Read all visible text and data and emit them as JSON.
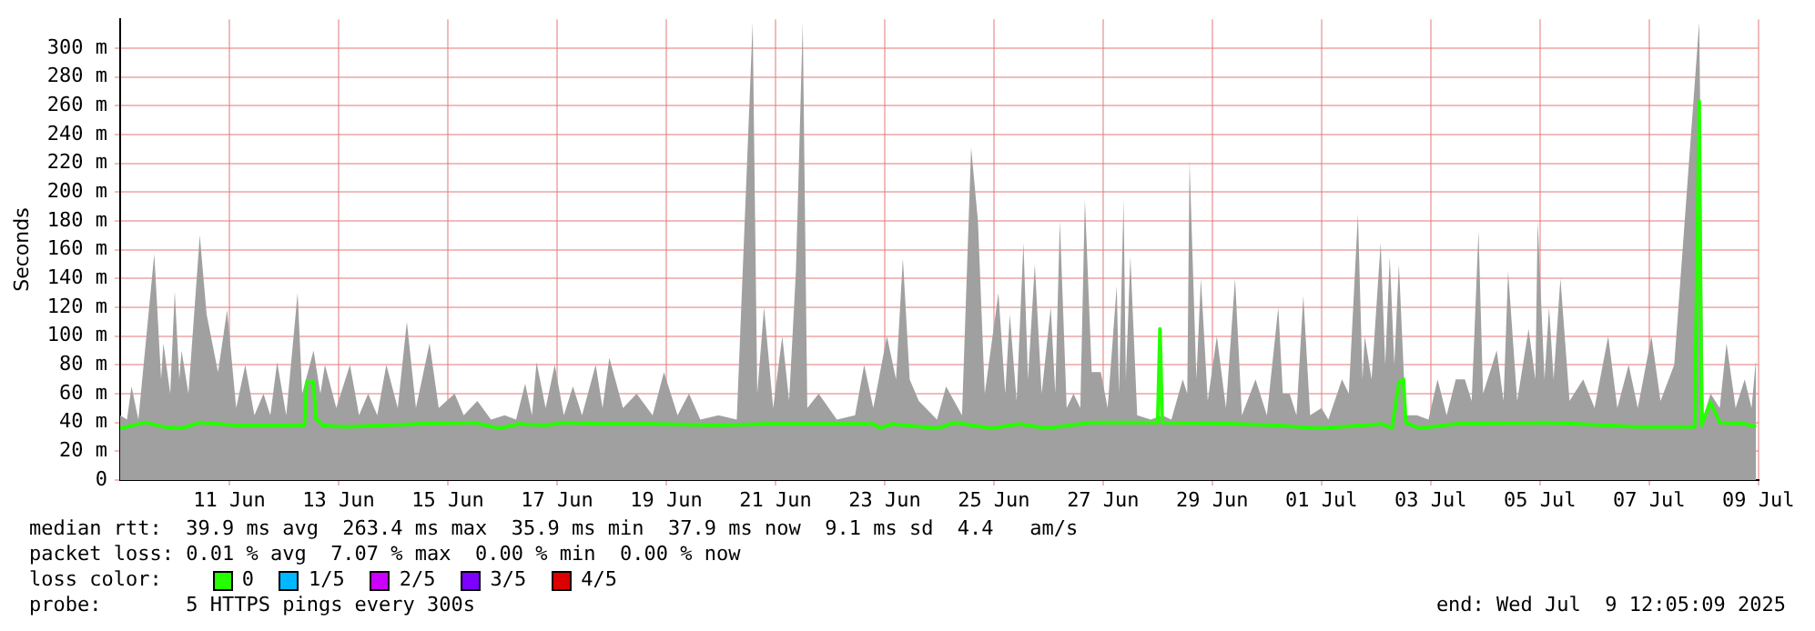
{
  "chart_data": {
    "type": "line",
    "ylabel": "Seconds",
    "legend_title": "loss color:",
    "legend": "bottom",
    "grid": true,
    "marker": "none",
    "line_style": "solid",
    "xlim": [
      "2025-06-09T12:00",
      "2025-07-09T12:05"
    ],
    "xticks": [
      {
        "value": "2025-06-11T12:00",
        "label": "11 Jun"
      },
      {
        "value": "2025-06-13T12:00",
        "label": "13 Jun"
      },
      {
        "value": "2025-06-15T12:00",
        "label": "15 Jun"
      },
      {
        "value": "2025-06-17T12:00",
        "label": "17 Jun"
      },
      {
        "value": "2025-06-19T12:00",
        "label": "19 Jun"
      },
      {
        "value": "2025-06-21T12:00",
        "label": "21 Jun"
      },
      {
        "value": "2025-06-23T12:00",
        "label": "23 Jun"
      },
      {
        "value": "2025-06-25T12:00",
        "label": "25 Jun"
      },
      {
        "value": "2025-06-27T12:00",
        "label": "27 Jun"
      },
      {
        "value": "2025-06-29T12:00",
        "label": "29 Jun"
      },
      {
        "value": "2025-07-01T12:00",
        "label": "01 Jul"
      },
      {
        "value": "2025-07-03T12:00",
        "label": "03 Jul"
      },
      {
        "value": "2025-07-05T12:00",
        "label": "05 Jul"
      },
      {
        "value": "2025-07-07T12:00",
        "label": "07 Jul"
      },
      {
        "value": "2025-07-09T12:00",
        "label": "09 Jul"
      }
    ],
    "ylim": [
      0,
      320
    ],
    "yticks": [
      0,
      {
        "value": 20,
        "label": "20 m"
      },
      {
        "value": 40,
        "label": "40 m"
      },
      {
        "value": 60,
        "label": "60 m"
      },
      {
        "value": 80,
        "label": "80 m"
      },
      {
        "value": 100,
        "label": "100 m"
      },
      {
        "value": 120,
        "label": "120 m"
      },
      {
        "value": 140,
        "label": "140 m"
      },
      {
        "value": 160,
        "label": "160 m"
      },
      {
        "value": 180,
        "label": "180 m"
      },
      {
        "value": 200,
        "label": "200 m"
      },
      {
        "value": 220,
        "label": "220 m"
      },
      {
        "value": 240,
        "label": "240 m"
      },
      {
        "value": 260,
        "label": "260 m"
      },
      {
        "value": 280,
        "label": "280 m"
      },
      {
        "value": 300,
        "label": "300 m"
      }
    ],
    "annotations": [
      "median rtt:  39.9 ms avg  263.4 ms max  35.9 ms min  37.9 ms now  9.1 ms sd  4.4   am/s",
      "packet loss: 0.01 % avg  7.07 % max  0.00 % min  0.00 % now",
      "probe:       5 HTTPS pings every 300s",
      "end: Wed Jul  9 12:05:09 2025"
    ],
    "series": [
      {
        "type": "area",
        "color": "#a0a0a0",
        "x": [
          "2025-06-09T12:00",
          "2025-06-09T15:00",
          "2025-06-09T17:00",
          "2025-06-09T20:00",
          "2025-06-10T03:00",
          "2025-06-10T06:00",
          "2025-06-10T07:00",
          "2025-06-10T10:00",
          "2025-06-10T12:00",
          "2025-06-10T14:00",
          "2025-06-10T15:00",
          "2025-06-10T18:00",
          "2025-06-10T23:00",
          "2025-06-11T02:00",
          "2025-06-11T07:00",
          "2025-06-11T11:00",
          "2025-06-11T15:00",
          "2025-06-11T19:00",
          "2025-06-11T23:00",
          "2025-06-12T03:00",
          "2025-06-12T06:00",
          "2025-06-12T09:00",
          "2025-06-12T13:00",
          "2025-06-12T18:00",
          "2025-06-12T20:00",
          "2025-06-13T01:00",
          "2025-06-13T04:00",
          "2025-06-13T06:00",
          "2025-06-13T11:00",
          "2025-06-13T17:00",
          "2025-06-13T21:00",
          "2025-06-14T01:00",
          "2025-06-14T05:00",
          "2025-06-14T09:00",
          "2025-06-14T14:00",
          "2025-06-14T18:00",
          "2025-06-14T22:00",
          "2025-06-15T04:00",
          "2025-06-15T08:00",
          "2025-06-15T15:00",
          "2025-06-15T19:00",
          "2025-06-16T01:00",
          "2025-06-16T07:00",
          "2025-06-16T13:00",
          "2025-06-16T18:00",
          "2025-06-16T22:00",
          "2025-06-17T01:00",
          "2025-06-17T03:00",
          "2025-06-17T07:00",
          "2025-06-17T11:00",
          "2025-06-17T15:00",
          "2025-06-17T19:00",
          "2025-06-17T23:00",
          "2025-06-18T05:00",
          "2025-06-18T08:00",
          "2025-06-18T11:00",
          "2025-06-18T17:00",
          "2025-06-18T23:00",
          "2025-06-19T06:00",
          "2025-06-19T11:00",
          "2025-06-19T17:00",
          "2025-06-19T22:00",
          "2025-06-20T03:00",
          "2025-06-20T11:00",
          "2025-06-20T19:00",
          "2025-06-21T02:00",
          "2025-06-21T04:00",
          "2025-06-21T07:00",
          "2025-06-21T11:00",
          "2025-06-21T15:00",
          "2025-06-21T18:00",
          "2025-06-21T21:00",
          "2025-06-22T00:00",
          "2025-06-22T02:00",
          "2025-06-22T07:00",
          "2025-06-22T15:00",
          "2025-06-22T23:00",
          "2025-06-23T03:00",
          "2025-06-23T07:00",
          "2025-06-23T13:00",
          "2025-06-23T17:00",
          "2025-06-23T20:00",
          "2025-06-23T23:00",
          "2025-06-24T03:00",
          "2025-06-24T11:00",
          "2025-06-24T15:00",
          "2025-06-24T22:00",
          "2025-06-25T02:00",
          "2025-06-25T05:00",
          "2025-06-25T08:00",
          "2025-06-25T14:00",
          "2025-06-25T17:00",
          "2025-06-25T19:00",
          "2025-06-25T22:00",
          "2025-06-26T01:00",
          "2025-06-26T03:00",
          "2025-06-26T06:00",
          "2025-06-26T09:00",
          "2025-06-26T13:00",
          "2025-06-26T15:00",
          "2025-06-26T17:00",
          "2025-06-26T20:00",
          "2025-06-26T23:00",
          "2025-06-27T02:00",
          "2025-06-27T04:00",
          "2025-06-27T07:00",
          "2025-06-27T11:00",
          "2025-06-27T14:00",
          "2025-06-27T18:00",
          "2025-06-27T19:00",
          "2025-06-27T21:00",
          "2025-06-27T22:00",
          "2025-06-28T00:00",
          "2025-06-28T03:00",
          "2025-06-28T09:00",
          "2025-06-28T14:00",
          "2025-06-28T18:00",
          "2025-06-28T23:00",
          "2025-06-29T01:00",
          "2025-06-29T02:00",
          "2025-06-29T05:00",
          "2025-06-29T07:00",
          "2025-06-29T10:00",
          "2025-06-29T14:00",
          "2025-06-29T18:00",
          "2025-06-29T22:00",
          "2025-06-30T01:00",
          "2025-06-30T07:00",
          "2025-06-30T12:00",
          "2025-06-30T17:00",
          "2025-06-30T19:00",
          "2025-06-30T22:00",
          "2025-07-01T01:00",
          "2025-07-01T04:00",
          "2025-07-01T07:00",
          "2025-07-01T12:00",
          "2025-07-01T15:00",
          "2025-07-01T21:00",
          "2025-07-02T00:00",
          "2025-07-02T04:00",
          "2025-07-02T06:00",
          "2025-07-02T07:00",
          "2025-07-02T10:00",
          "2025-07-02T14:00",
          "2025-07-02T16:00",
          "2025-07-02T18:00",
          "2025-07-02T20:00",
          "2025-07-02T22:00",
          "2025-07-03T01:00",
          "2025-07-03T06:00",
          "2025-07-03T11:00",
          "2025-07-03T15:00",
          "2025-07-03T19:00",
          "2025-07-03T23:00",
          "2025-07-04T03:00",
          "2025-07-04T06:00",
          "2025-07-04T09:00",
          "2025-07-04T11:00",
          "2025-07-04T17:00",
          "2025-07-04T20:00",
          "2025-07-04T22:00",
          "2025-07-05T02:00",
          "2025-07-05T07:00",
          "2025-07-05T10:00",
          "2025-07-05T11:00",
          "2025-07-05T14:00",
          "2025-07-05T16:00",
          "2025-07-05T18:00",
          "2025-07-05T21:00",
          "2025-07-06T01:00",
          "2025-07-06T07:00",
          "2025-07-06T12:00",
          "2025-07-06T18:00",
          "2025-07-06T22:00",
          "2025-07-07T03:00",
          "2025-07-07T07:00",
          "2025-07-07T13:00",
          "2025-07-07T17:00",
          "2025-07-07T23:00",
          "2025-07-08T10:00",
          "2025-07-08T12:00",
          "2025-07-08T15:00",
          "2025-07-08T19:00",
          "2025-07-08T22:00",
          "2025-07-09T02:00",
          "2025-07-09T06:00",
          "2025-07-09T09:00",
          "2025-07-09T11:00"
        ],
        "values": [
          45,
          42,
          65,
          42,
          157,
          70,
          95,
          60,
          131,
          70,
          90,
          60,
          170,
          115,
          75,
          118,
          50,
          80,
          45,
          60,
          45,
          82,
          45,
          130,
          60,
          90,
          60,
          80,
          50,
          80,
          45,
          60,
          45,
          80,
          50,
          110,
          50,
          95,
          50,
          60,
          45,
          55,
          42,
          45,
          42,
          67,
          45,
          82,
          50,
          80,
          45,
          65,
          45,
          80,
          50,
          85,
          50,
          60,
          45,
          75,
          45,
          60,
          42,
          45,
          42,
          318,
          60,
          120,
          50,
          100,
          55,
          145,
          318,
          50,
          60,
          42,
          45,
          80,
          50,
          100,
          70,
          154,
          70,
          55,
          42,
          65,
          45,
          231,
          180,
          60,
          130,
          60,
          115,
          55,
          165,
          70,
          150,
          60,
          120,
          60,
          180,
          50,
          60,
          50,
          195,
          75,
          75,
          50,
          135,
          60,
          195,
          70,
          155,
          45,
          42,
          45,
          42,
          70,
          60,
          222,
          70,
          140,
          55,
          100,
          50,
          140,
          45,
          70,
          45,
          120,
          60,
          60,
          45,
          128,
          45,
          50,
          42,
          70,
          60,
          185,
          70,
          100,
          70,
          165,
          80,
          155,
          80,
          150,
          45,
          45,
          42,
          70,
          45,
          70,
          70,
          55,
          173,
          60,
          90,
          55,
          145,
          55,
          105,
          70,
          180,
          70,
          120,
          70,
          140,
          55,
          70,
          50,
          100,
          50,
          80,
          50,
          100,
          55,
          80,
          318,
          45,
          60,
          50,
          95,
          50,
          70,
          50,
          85
        ]
      },
      {
        "type": "line",
        "name": "0",
        "color": "#26ff00",
        "x": [
          "2025-06-09T12:00",
          "2025-06-09T23:00",
          "2025-06-10T07:00",
          "2025-06-10T15:00",
          "2025-06-10T23:00",
          "2025-06-11T15:00",
          "2025-06-12T21:00",
          "2025-06-12T22:00",
          "2025-06-13T01:00",
          "2025-06-13T02:00",
          "2025-06-13T05:00",
          "2025-06-13T15:00",
          "2025-06-14T23:00",
          "2025-06-15T23:00",
          "2025-06-16T11:00",
          "2025-06-16T19:00",
          "2025-06-17T07:00",
          "2025-06-17T15:00",
          "2025-06-18T07:00",
          "2025-06-19T07:00",
          "2025-06-20T11:00",
          "2025-06-21T07:00",
          "2025-06-23T07:00",
          "2025-06-23T10:00",
          "2025-06-23T15:00",
          "2025-06-24T11:00",
          "2025-06-24T19:00",
          "2025-06-25T11:00",
          "2025-06-25T23:00",
          "2025-06-26T11:00",
          "2025-06-27T07:00",
          "2025-06-28T12:00",
          "2025-06-28T13:00",
          "2025-06-28T14:00",
          "2025-06-29T23:00",
          "2025-06-30T15:00",
          "2025-07-01T11:00",
          "2025-07-02T15:00",
          "2025-07-02T19:00",
          "2025-07-02T22:00",
          "2025-07-03T00:00",
          "2025-07-03T01:00",
          "2025-07-03T07:00",
          "2025-07-03T23:00",
          "2025-07-05T15:00",
          "2025-07-07T07:00",
          "2025-07-08T08:00",
          "2025-07-08T10:00",
          "2025-07-08T11:00",
          "2025-07-08T15:00",
          "2025-07-08T19:00",
          "2025-07-09T06:00",
          "2025-07-09T11:00"
        ],
        "values": [
          36,
          40,
          37,
          36,
          40,
          38,
          38,
          68,
          68,
          43,
          38,
          37,
          39,
          40,
          36,
          39,
          38,
          40,
          39,
          39,
          38,
          39,
          39,
          36,
          39,
          36,
          40,
          36,
          39,
          36,
          40,
          40,
          105,
          40,
          39,
          38,
          36,
          39,
          36,
          68,
          70,
          40,
          36,
          39,
          40,
          37,
          37,
          263,
          38,
          54,
          40,
          39,
          37
        ]
      },
      {
        "type": "line",
        "name": "1/5",
        "color": "#00b8ff"
      },
      {
        "type": "line",
        "name": "2/5",
        "color": "#cc00ff"
      },
      {
        "type": "line",
        "name": "3/5",
        "color": "#7e00ff"
      },
      {
        "type": "line",
        "name": "4/5",
        "color": "#dd0000"
      }
    ]
  }
}
